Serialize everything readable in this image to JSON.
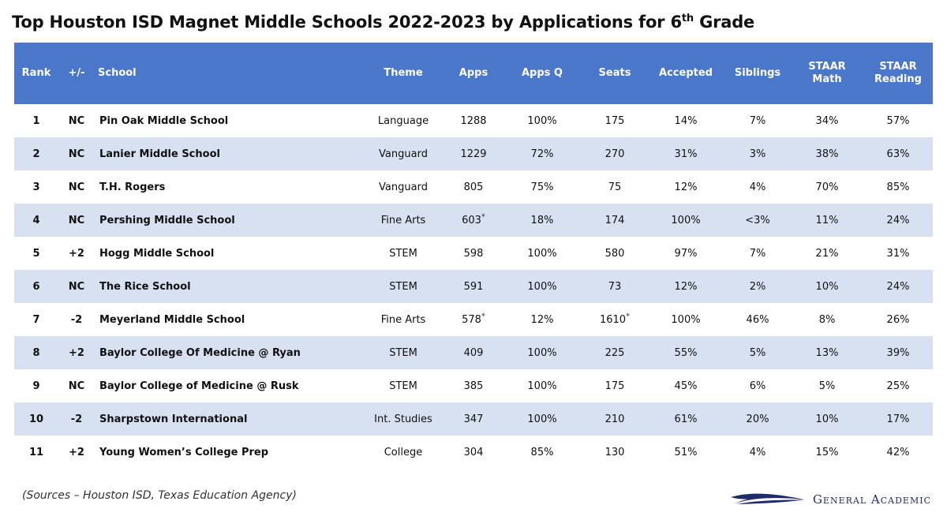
{
  "title": "Top Houston ISD Magnet Middle Schools 2022-2023 by Applications for 6",
  "title_sup": "th",
  "title_tail": " Grade",
  "chart_data": {
    "type": "table",
    "columns": [
      "Rank",
      "+/-",
      "School",
      "Theme",
      "Apps",
      "Apps Q",
      "Seats",
      "Accepted",
      "Siblings",
      "STAAR Math",
      "STAAR Reading"
    ],
    "rows": [
      {
        "rank": "1",
        "change": "NC",
        "school": "Pin Oak Middle School",
        "theme": "Language",
        "apps": "1288",
        "apps_star": "",
        "apps_q": "100%",
        "seats": "175",
        "seats_star": "",
        "accepted": "14%",
        "siblings": "7%",
        "math": "34%",
        "reading": "57%"
      },
      {
        "rank": "2",
        "change": "NC",
        "school": "Lanier Middle School",
        "theme": "Vanguard",
        "apps": "1229",
        "apps_star": "",
        "apps_q": "72%",
        "seats": "270",
        "seats_star": "",
        "accepted": "31%",
        "siblings": "3%",
        "math": "38%",
        "reading": "63%"
      },
      {
        "rank": "3",
        "change": "NC",
        "school": "T.H. Rogers",
        "theme": "Vanguard",
        "apps": "805",
        "apps_star": "",
        "apps_q": "75%",
        "seats": "75",
        "seats_star": "",
        "accepted": "12%",
        "siblings": "4%",
        "math": "70%",
        "reading": "85%"
      },
      {
        "rank": "4",
        "change": "NC",
        "school": "Pershing Middle School",
        "theme": "Fine Arts",
        "apps": "603",
        "apps_star": "*",
        "apps_q": "18%",
        "seats": "174",
        "seats_star": "",
        "accepted": "100%",
        "siblings": "<3%",
        "math": "11%",
        "reading": "24%"
      },
      {
        "rank": "5",
        "change": "+2",
        "school": "Hogg Middle School",
        "theme": "STEM",
        "apps": "598",
        "apps_star": "",
        "apps_q": "100%",
        "seats": "580",
        "seats_star": "",
        "accepted": "97%",
        "siblings": "7%",
        "math": "21%",
        "reading": "31%"
      },
      {
        "rank": "6",
        "change": "NC",
        "school": "The Rice School",
        "theme": "STEM",
        "apps": "591",
        "apps_star": "",
        "apps_q": "100%",
        "seats": "73",
        "seats_star": "",
        "accepted": "12%",
        "siblings": "2%",
        "math": "10%",
        "reading": "24%"
      },
      {
        "rank": "7",
        "change": "-2",
        "school": "Meyerland Middle School",
        "theme": "Fine Arts",
        "apps": "578",
        "apps_star": "*",
        "apps_q": "12%",
        "seats": "1610",
        "seats_star": "*",
        "accepted": "100%",
        "siblings": "46%",
        "math": "8%",
        "reading": "26%"
      },
      {
        "rank": "8",
        "change": "+2",
        "school": "Baylor College Of Medicine @ Ryan",
        "theme": "STEM",
        "apps": "409",
        "apps_star": "",
        "apps_q": "100%",
        "seats": "225",
        "seats_star": "",
        "accepted": "55%",
        "siblings": "5%",
        "math": "13%",
        "reading": "39%"
      },
      {
        "rank": "9",
        "change": "NC",
        "school": "Baylor College of Medicine @ Rusk",
        "theme": "STEM",
        "apps": "385",
        "apps_star": "",
        "apps_q": "100%",
        "seats": "175",
        "seats_star": "",
        "accepted": "45%",
        "siblings": "6%",
        "math": "5%",
        "reading": "25%"
      },
      {
        "rank": "10",
        "change": "-2",
        "school": "Sharpstown International",
        "theme": "Int. Studies",
        "apps": "347",
        "apps_star": "",
        "apps_q": "100%",
        "seats": "210",
        "seats_star": "",
        "accepted": "61%",
        "siblings": "20%",
        "math": "10%",
        "reading": "17%"
      },
      {
        "rank": "11",
        "change": "+2",
        "school": "Young Women’s College Prep",
        "theme": "College",
        "apps": "304",
        "apps_star": "",
        "apps_q": "85%",
        "seats": "130",
        "seats_star": "",
        "accepted": "51%",
        "siblings": "4%",
        "math": "15%",
        "reading": "42%"
      }
    ]
  },
  "header": {
    "rank": "Rank",
    "change": "+/-",
    "school": "School",
    "theme": "Theme",
    "apps": "Apps",
    "apps_q": "Apps Q",
    "seats": "Seats",
    "accepted": "Accepted",
    "siblings": "Siblings",
    "math_1": "STAAR",
    "math_2": "Math",
    "reading_1": "STAAR",
    "reading_2": "Reading"
  },
  "footer": {
    "sources": "(Sources – Houston ISD, Texas Education Agency)",
    "logo_text": "General Academic",
    "logo_icon": "swoosh-icon",
    "logo_color": "#1f2a6b"
  },
  "colors": {
    "header_bg": "#4a77c9",
    "stripe": "#d8e1f1"
  }
}
